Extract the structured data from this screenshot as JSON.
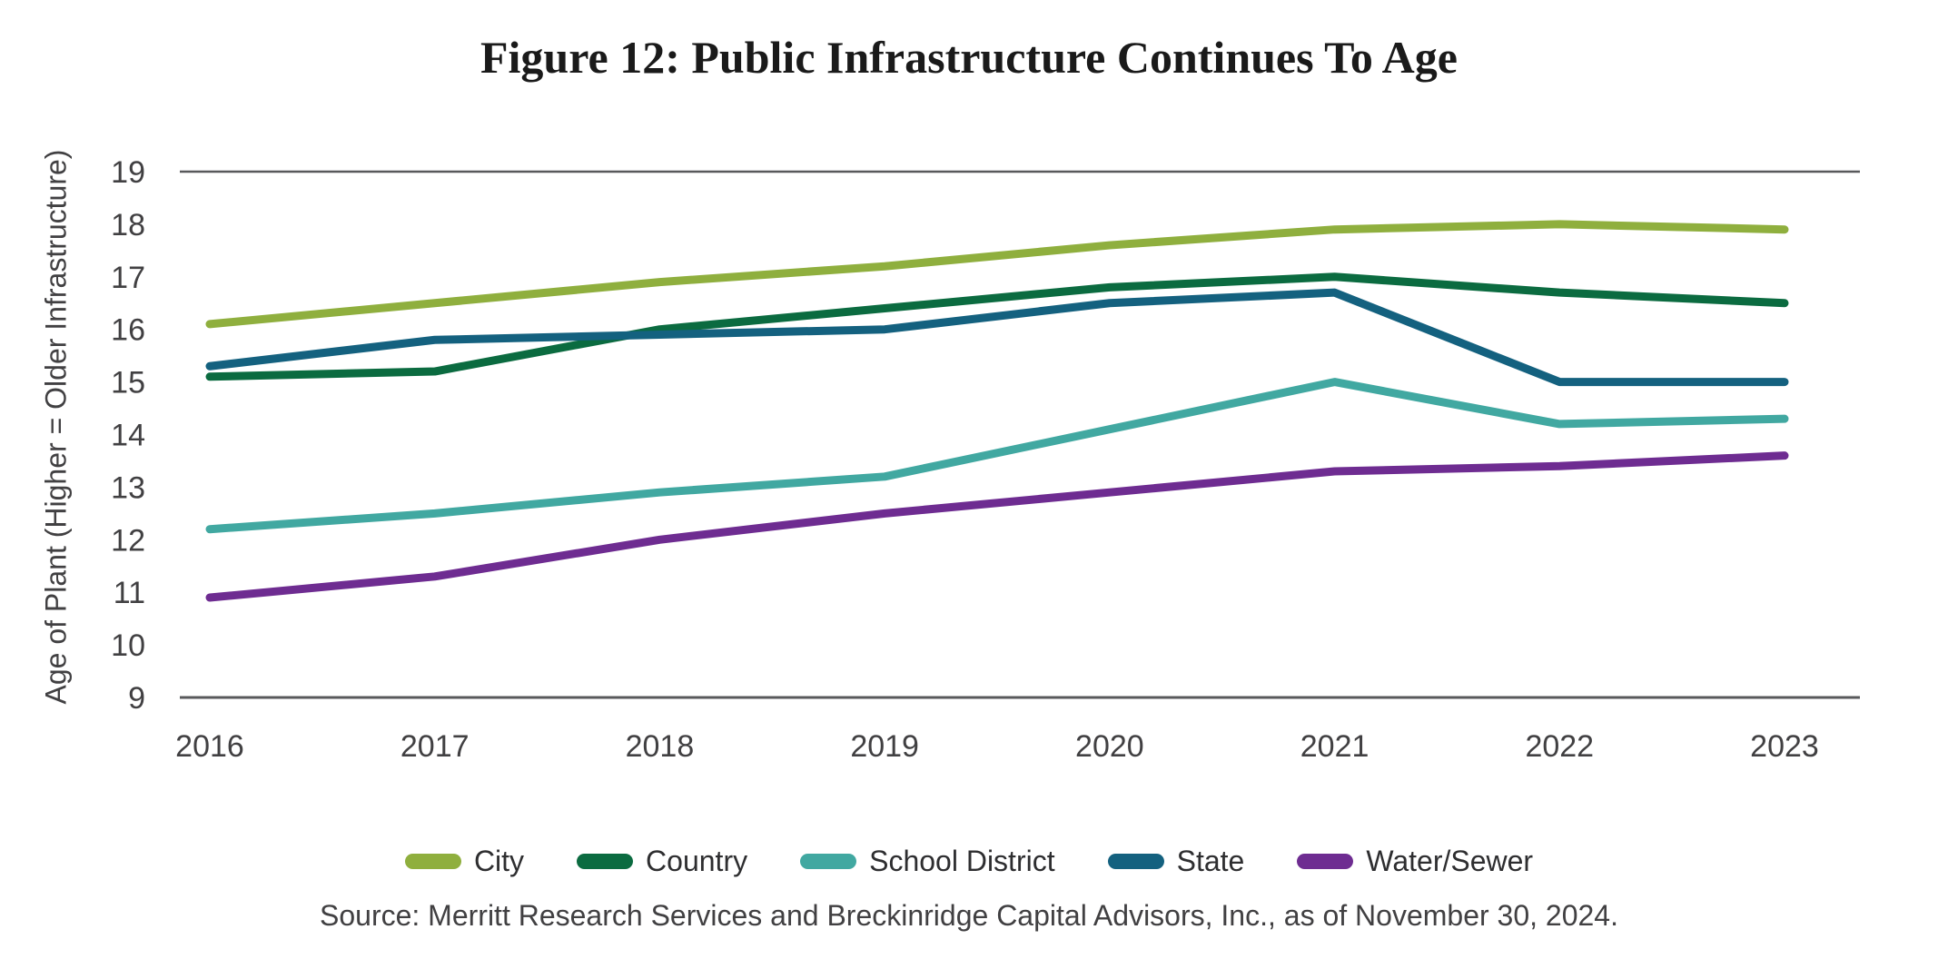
{
  "chart_data": {
    "type": "line",
    "title": "Figure 12: Public Infrastructure Continues To Age",
    "ylabel": "Age of Plant (Higher = Older Infrastructure)",
    "xlabel": "",
    "source_note": "Source: Merritt Research Services and Breckinridge Capital Advisors, Inc., as of November 30, 2024.",
    "categories": [
      "2016",
      "2017",
      "2018",
      "2019",
      "2020",
      "2021",
      "2022",
      "2023"
    ],
    "ylim": [
      9,
      19
    ],
    "ytick_step": 1,
    "grid": "horizontal lines at top (19) and bottom (9) only",
    "legend_position": "bottom-center",
    "colors": {
      "axis_line": "#58595B",
      "tick_labels": "#414042",
      "title_text": "#1A1A1A"
    },
    "series": [
      {
        "name": "City",
        "color": "#8FAF3E",
        "values": [
          16.1,
          16.5,
          16.9,
          17.2,
          17.6,
          17.9,
          18.0,
          17.9
        ]
      },
      {
        "name": "Country",
        "color": "#0B6B40",
        "values": [
          15.1,
          15.2,
          16.0,
          16.4,
          16.8,
          17.0,
          16.7,
          16.5
        ]
      },
      {
        "name": "School District",
        "color": "#41A8A1",
        "values": [
          12.2,
          12.5,
          12.9,
          13.2,
          14.1,
          15.0,
          14.2,
          14.3
        ]
      },
      {
        "name": "State",
        "color": "#14617F",
        "values": [
          15.3,
          15.8,
          15.9,
          16.0,
          16.5,
          16.7,
          15.0,
          15.0
        ]
      },
      {
        "name": "Water/Sewer",
        "color": "#6E2C91",
        "values": [
          10.9,
          11.3,
          12.0,
          12.5,
          12.9,
          13.3,
          13.4,
          13.6
        ]
      }
    ]
  }
}
